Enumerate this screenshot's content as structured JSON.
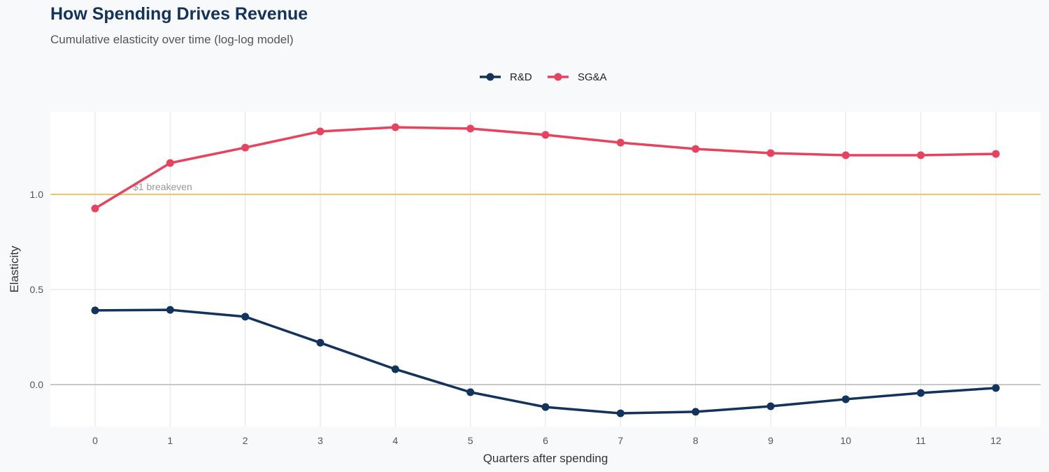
{
  "chart_data": {
    "type": "line",
    "title": "How Spending Drives Revenue",
    "subtitle": "Cumulative elasticity over time (log-log model)",
    "xlabel": "Quarters after spending",
    "ylabel": "Elasticity",
    "x": [
      0,
      1,
      2,
      3,
      4,
      5,
      6,
      7,
      8,
      9,
      10,
      11,
      12
    ],
    "xlim": [
      -0.6,
      12.6
    ],
    "ylim": [
      -0.22,
      1.43
    ],
    "yticks": [
      "0.0",
      "0.5",
      "1.0"
    ],
    "ytick_values": [
      0,
      0.5,
      1.0
    ],
    "xticks": [
      "0",
      "1",
      "2",
      "3",
      "4",
      "5",
      "6",
      "7",
      "8",
      "9",
      "10",
      "11",
      "12"
    ],
    "grid": true,
    "legend_position": "top",
    "series": [
      {
        "name": "R&D",
        "color": "#12335b",
        "values": [
          0.39,
          0.393,
          0.357,
          0.22,
          0.081,
          -0.04,
          -0.118,
          -0.151,
          -0.143,
          -0.114,
          -0.077,
          -0.044,
          -0.018
        ]
      },
      {
        "name": "SG&A",
        "color": "#e8435e",
        "values": [
          0.926,
          1.165,
          1.246,
          1.331,
          1.353,
          1.346,
          1.313,
          1.272,
          1.239,
          1.217,
          1.206,
          1.206,
          1.213
        ]
      }
    ],
    "reference_line": {
      "y": 1.0,
      "label": "$1 breakeven",
      "color": "#f2c65a"
    }
  }
}
